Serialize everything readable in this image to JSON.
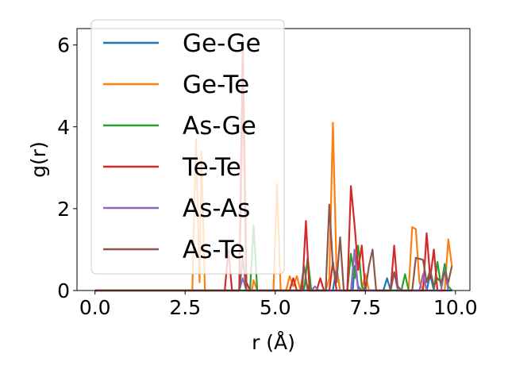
{
  "chart_data": {
    "type": "line",
    "xlabel": "r (Å)",
    "ylabel": "g(r)",
    "xlim": [
      -0.5,
      10.4
    ],
    "ylim": [
      0,
      6.4
    ],
    "xticks": [
      0.0,
      2.5,
      5.0,
      7.5,
      10.0
    ],
    "xtick_labels": [
      "0.0",
      "2.5",
      "5.0",
      "7.5",
      "10.0"
    ],
    "yticks": [
      0,
      2,
      4,
      6
    ],
    "ytick_labels": [
      "0",
      "2",
      "4",
      "6"
    ],
    "grid": false,
    "legend_position": "top-left",
    "series": [
      {
        "name": "Ge-Ge",
        "color": "#1f77b4",
        "points": [
          [
            0,
            0
          ],
          [
            5.75,
            0
          ],
          [
            5.85,
            0.2
          ],
          [
            5.95,
            0
          ],
          [
            6.6,
            0
          ],
          [
            6.7,
            0.55
          ],
          [
            6.8,
            0
          ],
          [
            7.15,
            0
          ],
          [
            7.2,
            0.6
          ],
          [
            7.3,
            0.1
          ],
          [
            7.4,
            0
          ],
          [
            8.0,
            0
          ],
          [
            8.1,
            0.3
          ],
          [
            8.2,
            0
          ],
          [
            9.2,
            0
          ],
          [
            9.3,
            0.4
          ],
          [
            9.4,
            0
          ],
          [
            9.9,
            0
          ]
        ]
      },
      {
        "name": "Ge-Te",
        "color": "#ff7f0e",
        "points": [
          [
            0,
            0
          ],
          [
            2.7,
            0
          ],
          [
            2.8,
            3.7
          ],
          [
            2.9,
            0.2
          ],
          [
            2.95,
            3.4
          ],
          [
            3.05,
            0
          ],
          [
            4.0,
            0
          ],
          [
            4.1,
            5.0
          ],
          [
            4.2,
            0
          ],
          [
            4.35,
            0
          ],
          [
            4.4,
            0.25
          ],
          [
            4.5,
            0
          ],
          [
            4.95,
            0
          ],
          [
            5.05,
            2.6
          ],
          [
            5.15,
            0
          ],
          [
            5.3,
            0
          ],
          [
            5.4,
            0.35
          ],
          [
            5.5,
            0.1
          ],
          [
            5.6,
            0.35
          ],
          [
            5.7,
            0
          ],
          [
            6.4,
            0
          ],
          [
            6.5,
            0.3
          ],
          [
            6.6,
            4.1
          ],
          [
            6.7,
            0.5
          ],
          [
            6.8,
            0
          ],
          [
            7.4,
            0
          ],
          [
            7.5,
            0.4
          ],
          [
            7.6,
            0
          ],
          [
            8.7,
            0
          ],
          [
            8.8,
            1.55
          ],
          [
            8.9,
            1.5
          ],
          [
            9.0,
            0.2
          ],
          [
            9.1,
            0
          ],
          [
            9.7,
            0
          ],
          [
            9.8,
            1.25
          ],
          [
            9.9,
            0.6
          ]
        ]
      },
      {
        "name": "As-Ge",
        "color": "#2ca02c",
        "points": [
          [
            0,
            0
          ],
          [
            4.3,
            0
          ],
          [
            4.4,
            1.6
          ],
          [
            4.5,
            0
          ],
          [
            5.8,
            0
          ],
          [
            5.9,
            0.8
          ],
          [
            6.0,
            0
          ],
          [
            7.0,
            0
          ],
          [
            7.1,
            0.9
          ],
          [
            7.2,
            0.3
          ],
          [
            7.3,
            1.1
          ],
          [
            7.4,
            0.1
          ],
          [
            7.5,
            0
          ],
          [
            8.5,
            0
          ],
          [
            8.6,
            0.4
          ],
          [
            8.7,
            0
          ],
          [
            9.4,
            0
          ],
          [
            9.5,
            0.7
          ],
          [
            9.6,
            0.1
          ],
          [
            9.7,
            0.65
          ],
          [
            9.8,
            0.1
          ],
          [
            9.9,
            0
          ]
        ]
      },
      {
        "name": "Te-Te",
        "color": "#d62728",
        "points": [
          [
            0,
            0
          ],
          [
            3.6,
            0
          ],
          [
            3.7,
            1.0
          ],
          [
            3.8,
            0
          ],
          [
            4.0,
            0
          ],
          [
            4.1,
            6.1
          ],
          [
            4.2,
            0.2
          ],
          [
            4.3,
            0
          ],
          [
            5.4,
            0
          ],
          [
            5.5,
            0.3
          ],
          [
            5.6,
            0
          ],
          [
            5.75,
            0
          ],
          [
            5.85,
            1.7
          ],
          [
            5.95,
            0
          ],
          [
            6.15,
            0
          ],
          [
            6.25,
            0.3
          ],
          [
            6.35,
            0
          ],
          [
            6.5,
            0
          ],
          [
            6.6,
            0.7
          ],
          [
            6.7,
            0
          ],
          [
            7.0,
            0
          ],
          [
            7.1,
            2.55
          ],
          [
            7.2,
            1.6
          ],
          [
            7.3,
            0.5
          ],
          [
            7.4,
            1.1
          ],
          [
            7.5,
            0
          ],
          [
            8.2,
            0
          ],
          [
            8.3,
            1.1
          ],
          [
            8.4,
            0
          ],
          [
            9.1,
            0
          ],
          [
            9.2,
            1.4
          ],
          [
            9.3,
            0.3
          ],
          [
            9.4,
            1.0
          ],
          [
            9.5,
            0
          ],
          [
            9.7,
            0
          ]
        ]
      },
      {
        "name": "As-As",
        "color": "#9467bd",
        "points": [
          [
            0,
            0
          ],
          [
            4.0,
            0
          ],
          [
            4.1,
            0.3
          ],
          [
            4.2,
            0
          ],
          [
            6.0,
            0
          ],
          [
            6.1,
            0.1
          ],
          [
            6.2,
            0
          ],
          [
            7.1,
            0
          ],
          [
            7.2,
            1.0
          ],
          [
            7.3,
            0
          ],
          [
            8.2,
            0
          ],
          [
            8.3,
            0.45
          ],
          [
            8.4,
            0
          ],
          [
            9.0,
            0
          ],
          [
            9.1,
            0.4
          ],
          [
            9.2,
            0
          ],
          [
            9.6,
            0
          ],
          [
            9.7,
            0.5
          ],
          [
            9.8,
            0
          ]
        ]
      },
      {
        "name": "As-Te",
        "color": "#8c564b",
        "points": [
          [
            0,
            0
          ],
          [
            4.0,
            0
          ],
          [
            4.1,
            0.8
          ],
          [
            4.2,
            0
          ],
          [
            5.7,
            0
          ],
          [
            5.8,
            0.6
          ],
          [
            5.9,
            0
          ],
          [
            6.4,
            0
          ],
          [
            6.5,
            2.1
          ],
          [
            6.6,
            0.6
          ],
          [
            6.7,
            0.2
          ],
          [
            6.8,
            1.3
          ],
          [
            6.9,
            0
          ],
          [
            7.5,
            0
          ],
          [
            7.6,
            0.6
          ],
          [
            7.7,
            1.0
          ],
          [
            7.8,
            0
          ],
          [
            8.2,
            0
          ],
          [
            8.3,
            0.45
          ],
          [
            8.4,
            0.1
          ],
          [
            8.5,
            0
          ],
          [
            8.8,
            0
          ],
          [
            8.9,
            0.8
          ],
          [
            9.1,
            0.75
          ],
          [
            9.2,
            0.2
          ],
          [
            9.3,
            0.5
          ],
          [
            9.4,
            0.1
          ],
          [
            9.5,
            0.3
          ],
          [
            9.6,
            0.2
          ],
          [
            9.7,
            0.45
          ],
          [
            9.8,
            0.2
          ],
          [
            9.9,
            0.6
          ]
        ]
      }
    ]
  }
}
